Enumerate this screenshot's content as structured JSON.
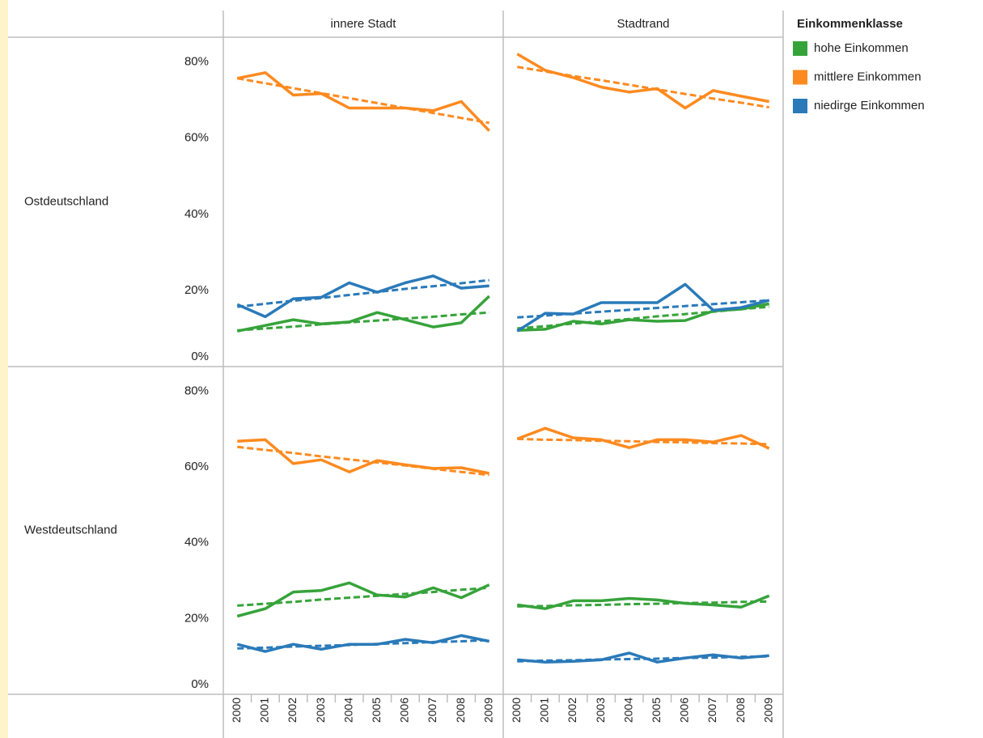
{
  "chart_data": {
    "type": "line",
    "legend_title": "Einkommenklasse",
    "categories": [
      "2000",
      "2001",
      "2002",
      "2003",
      "2004",
      "2005",
      "2006",
      "2007",
      "2008",
      "2009"
    ],
    "ylim": [
      0,
      86.5
    ],
    "yticks": [
      {
        "value": 0,
        "label": "0%"
      },
      {
        "value": 20,
        "label": "20%"
      },
      {
        "value": 40,
        "label": "40%"
      },
      {
        "value": 60,
        "label": "60%"
      },
      {
        "value": 80,
        "label": "80%"
      }
    ],
    "columns": [
      "innere Stadt",
      "Stadtrand"
    ],
    "series": [
      {
        "name": "hohe Einkommen",
        "color": "#36a33a"
      },
      {
        "name": "mittlere Einkommen",
        "color": "#fd8a1f"
      },
      {
        "name": "niedirge Einkommen",
        "color": "#2a7ab9"
      }
    ],
    "rows": [
      {
        "label": "Ostdeutschland",
        "panels": [
          {
            "values": [
              [
                9.3,
                10.8,
                12.3,
                11.2,
                11.7,
                14.2,
                12.3,
                10.4,
                11.5,
                18.5
              ],
              [
                75.7,
                77.2,
                71.3,
                71.7,
                67.9,
                67.9,
                67.9,
                67.2,
                69.6,
                61.9
              ],
              [
                16.3,
                13.1,
                17.8,
                18.2,
                22.0,
                19.5,
                22.0,
                23.8,
                20.6,
                21.2
              ]
            ],
            "trend": [
              [
                9.5,
                10.0,
                10.5,
                11.1,
                11.6,
                12.1,
                12.6,
                13.1,
                13.7,
                14.2
              ],
              [
                75.7,
                74.4,
                73.1,
                71.8,
                70.5,
                69.2,
                67.9,
                66.6,
                65.3,
                64.0
              ],
              [
                15.7,
                16.5,
                17.3,
                18.0,
                18.8,
                19.6,
                20.4,
                21.1,
                21.9,
                22.7
              ]
            ]
          },
          {
            "values": [
              [
                9.5,
                9.8,
                11.9,
                11.2,
                12.3,
                11.9,
                12.1,
                14.6,
                15.1,
                16.5
              ],
              [
                82.1,
                77.8,
                75.9,
                73.4,
                72.1,
                73.0,
                67.9,
                72.5,
                71.0,
                69.6
              ],
              [
                9.3,
                14.0,
                13.8,
                16.8,
                16.8,
                16.8,
                21.6,
                14.8,
                15.5,
                17.4
              ]
            ],
            "trend": [
              [
                10.0,
                10.6,
                11.3,
                11.9,
                12.5,
                13.2,
                13.8,
                14.4,
                15.1,
                15.7
              ],
              [
                78.7,
                77.5,
                76.3,
                75.2,
                74.0,
                72.8,
                71.6,
                70.4,
                69.3,
                68.1
              ],
              [
                12.9,
                13.4,
                13.9,
                14.4,
                14.9,
                15.4,
                15.9,
                16.4,
                16.9,
                17.4
              ]
            ]
          }
        ]
      },
      {
        "label": "Westdeutschland",
        "panels": [
          {
            "values": [
              [
                20.6,
                22.6,
                27.0,
                27.4,
                29.4,
                26.2,
                25.7,
                28.1,
                25.5,
                28.9
              ],
              [
                66.8,
                67.2,
                60.9,
                61.9,
                58.7,
                61.7,
                60.6,
                59.6,
                59.8,
                58.3
              ],
              [
                13.2,
                11.3,
                13.2,
                11.9,
                13.2,
                13.2,
                14.5,
                13.6,
                15.5,
                14.0
              ]
            ],
            "trend": [
              [
                23.4,
                23.9,
                24.4,
                25.0,
                25.5,
                26.0,
                26.5,
                27.0,
                27.6,
                28.1
              ],
              [
                65.3,
                64.5,
                63.7,
                62.8,
                62.0,
                61.2,
                60.4,
                59.5,
                58.7,
                57.9
              ],
              [
                12.1,
                12.3,
                12.6,
                12.8,
                13.0,
                13.3,
                13.5,
                13.8,
                14.0,
                14.3
              ]
            ]
          },
          {
            "values": [
              [
                23.6,
                22.6,
                24.7,
                24.7,
                25.3,
                24.9,
                24.0,
                23.6,
                23.0,
                26.0
              ],
              [
                67.4,
                70.2,
                67.7,
                67.2,
                65.1,
                67.2,
                67.2,
                66.6,
                68.3,
                64.9
              ],
              [
                9.1,
                8.5,
                8.7,
                9.1,
                10.9,
                8.5,
                9.6,
                10.4,
                9.6,
                10.2
              ]
            ],
            "trend": [
              [
                23.2,
                23.3,
                23.5,
                23.6,
                23.8,
                23.9,
                24.1,
                24.2,
                24.4,
                24.5
              ],
              [
                67.4,
                67.2,
                67.1,
                66.9,
                66.8,
                66.6,
                66.5,
                66.3,
                66.2,
                66.0
              ],
              [
                8.7,
                8.9,
                9.0,
                9.2,
                9.3,
                9.4,
                9.6,
                9.7,
                9.9,
                10.0
              ]
            ]
          }
        ]
      }
    ]
  }
}
